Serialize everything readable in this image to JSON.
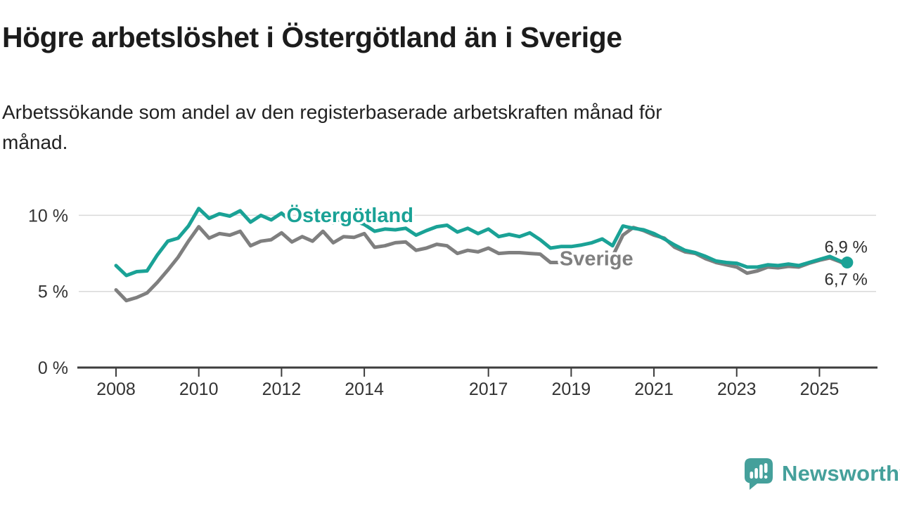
{
  "header": {
    "title": "Högre arbetslöshet i Östergötland än i Sverige",
    "subtitle_line1": "Arbetssökande som andel av den registerbaserade arbetskraften månad för",
    "subtitle_line2": "månad."
  },
  "footer": {
    "brand": "Newsworthy"
  },
  "colors": {
    "ostergotland": "#1aa296",
    "sverige": "#7f7f7f",
    "grid": "#d9d9d9",
    "axis": "#3d3d3d",
    "tick_text": "#333333",
    "annotation_text": "#2e2e2e",
    "brand_teal": "#45a09b"
  },
  "chart_data": {
    "type": "line",
    "title": "Högre arbetslöshet i Östergötland än i Sverige",
    "xlabel": "",
    "ylabel": "Arbetssökande som andel av den registerbaserade arbetskraften månad för månad",
    "xlim": [
      2007.1,
      2026.5
    ],
    "ylim": [
      0,
      11.5
    ],
    "grid": true,
    "legend_position": "inline-labels",
    "y_ticks": [
      {
        "value": 0,
        "label": "0 %"
      },
      {
        "value": 5,
        "label": "5 %"
      },
      {
        "value": 10,
        "label": "10 %"
      }
    ],
    "x_ticks": [
      {
        "year": 2008,
        "label": "2008"
      },
      {
        "year": 2010,
        "label": "2010"
      },
      {
        "year": 2012,
        "label": "2012"
      },
      {
        "year": 2014,
        "label": "2014"
      },
      {
        "year": 2017,
        "label": "2017"
      },
      {
        "year": 2019,
        "label": "2019"
      },
      {
        "year": 2021,
        "label": "2021"
      },
      {
        "year": 2023,
        "label": "2023"
      },
      {
        "year": 2025,
        "label": "2025"
      }
    ],
    "x": [
      2008,
      2008.25,
      2008.5,
      2008.75,
      2009,
      2009.25,
      2009.5,
      2009.75,
      2010,
      2010.25,
      2010.5,
      2010.75,
      2011,
      2011.25,
      2011.5,
      2011.75,
      2012,
      2012.25,
      2012.5,
      2012.75,
      2013,
      2013.25,
      2013.5,
      2013.75,
      2014,
      2014.25,
      2014.5,
      2014.75,
      2015,
      2015.25,
      2015.5,
      2015.75,
      2016,
      2016.25,
      2016.5,
      2016.75,
      2017,
      2017.25,
      2017.5,
      2017.75,
      2018,
      2018.25,
      2018.5,
      2018.75,
      2019,
      2019.25,
      2019.5,
      2019.75,
      2020,
      2020.25,
      2020.5,
      2020.75,
      2021,
      2021.25,
      2021.5,
      2021.75,
      2022,
      2022.25,
      2022.5,
      2022.75,
      2023,
      2023.25,
      2023.5,
      2023.75,
      2024,
      2024.25,
      2024.5,
      2024.75,
      2025,
      2025.25,
      2025.5,
      2025.67
    ],
    "series": [
      {
        "name": "Sverige",
        "color": "#7f7f7f",
        "end_dot": false,
        "label": {
          "text": "Sverige",
          "x": 2018.72,
          "value": 6.72
        },
        "values": [
          5.1,
          4.4,
          4.6,
          4.9,
          5.6,
          6.4,
          7.25,
          8.3,
          9.25,
          8.5,
          8.8,
          8.7,
          8.95,
          8.0,
          8.3,
          8.4,
          8.85,
          8.25,
          8.6,
          8.3,
          8.95,
          8.2,
          8.6,
          8.55,
          8.8,
          7.9,
          8.0,
          8.2,
          8.25,
          7.7,
          7.85,
          8.1,
          8.0,
          7.5,
          7.7,
          7.6,
          7.85,
          7.5,
          7.55,
          7.55,
          7.5,
          7.45,
          6.9,
          6.9,
          6.95,
          7.0,
          7.1,
          7.3,
          7.3,
          8.7,
          9.2,
          9.0,
          8.7,
          8.5,
          7.9,
          7.6,
          7.5,
          7.15,
          6.9,
          6.75,
          6.6,
          6.2,
          6.35,
          6.6,
          6.55,
          6.65,
          6.6,
          6.85,
          7.05,
          7.2,
          6.95,
          6.7
        ]
      },
      {
        "name": "Östergötland",
        "color": "#1aa296",
        "end_dot": true,
        "label": {
          "text": "Östergötland",
          "x": 2012.12,
          "value": 9.55
        },
        "values": [
          6.7,
          6.05,
          6.3,
          6.35,
          7.4,
          8.3,
          8.5,
          9.3,
          10.45,
          9.8,
          10.1,
          9.95,
          10.3,
          9.55,
          10.0,
          9.7,
          10.15,
          9.55,
          9.95,
          9.75,
          10.1,
          9.5,
          9.9,
          9.65,
          9.4,
          8.95,
          9.1,
          9.05,
          9.15,
          8.7,
          9.0,
          9.25,
          9.35,
          8.9,
          9.15,
          8.8,
          9.1,
          8.6,
          8.75,
          8.6,
          8.85,
          8.4,
          7.85,
          7.95,
          7.95,
          8.05,
          8.2,
          8.45,
          8.0,
          9.3,
          9.15,
          9.05,
          8.8,
          8.45,
          8.05,
          7.7,
          7.55,
          7.3,
          7.0,
          6.9,
          6.85,
          6.6,
          6.6,
          6.75,
          6.7,
          6.8,
          6.7,
          6.9,
          7.1,
          7.3,
          7.0,
          6.9
        ]
      }
    ],
    "annotations": [
      {
        "text": "6,9 %",
        "x": 2025.12,
        "value": 7.55
      },
      {
        "text": "6,7 %",
        "x": 2025.12,
        "value": 5.42
      }
    ]
  }
}
